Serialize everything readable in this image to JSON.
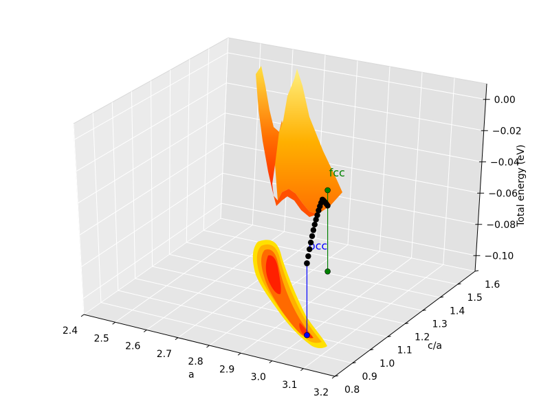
{
  "chart_data": {
    "type": "surface3d",
    "title": "",
    "xlabel": "a",
    "ylabel": "c/a",
    "zlabel": "Total energy (eV)",
    "xlim": [
      2.4,
      3.2
    ],
    "ylim": [
      0.8,
      1.6
    ],
    "zlim": [
      -0.11,
      0.01
    ],
    "x_ticks": [
      "2.4",
      "2.5",
      "2.6",
      "2.7",
      "2.8",
      "2.9",
      "3.0",
      "3.1",
      "3.2"
    ],
    "y_ticks": [
      "0.8",
      "0.9",
      "1.0",
      "1.1",
      "1.2",
      "1.3",
      "1.4",
      "1.5",
      "1.6"
    ],
    "z_ticks": [
      "−0.10",
      "−0.08",
      "−0.06",
      "−0.04",
      "−0.02",
      "0.00"
    ],
    "grid": true,
    "colormap": [
      "#ff0000",
      "#ff4000",
      "#ff8000",
      "#ffc000",
      "#ffff60"
    ],
    "annotations": [
      {
        "label": "fcc",
        "color": "#008000",
        "a": 2.84,
        "c_over_a": 1.41,
        "energy": -0.058
      },
      {
        "label": "bcc",
        "color": "#0000ff",
        "a": 3.0,
        "c_over_a": 1.0,
        "energy": -0.064
      }
    ],
    "path_marker_color": "#000000"
  }
}
